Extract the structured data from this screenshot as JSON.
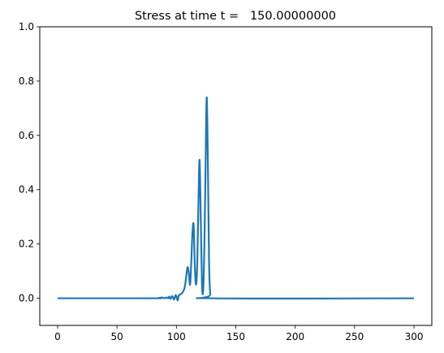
{
  "chart_data": {
    "type": "line",
    "title": "Stress at time t =   150.00000000",
    "xlabel": "",
    "ylabel": "",
    "xlim": [
      -15,
      315
    ],
    "ylim": [
      -0.1,
      1.0
    ],
    "grid": false,
    "x_ticks": [
      0,
      50,
      100,
      150,
      200,
      250,
      300
    ],
    "x_tick_labels": [
      "0",
      "50",
      "100",
      "150",
      "200",
      "250",
      "300"
    ],
    "y_ticks": [
      0.0,
      0.2,
      0.4,
      0.6,
      0.8,
      1.0
    ],
    "y_tick_labels": [
      "0.0",
      "0.2",
      "0.4",
      "0.6",
      "0.8",
      "1.0"
    ],
    "series": [
      {
        "color": "#1f77b4",
        "x": [
          0,
          80,
          85,
          88,
          90,
          91.5,
          93,
          94,
          95,
          96.5,
          98,
          99.5,
          101,
          102,
          103.5,
          105,
          107,
          108.5,
          109.5,
          110.5,
          111.5,
          112.5,
          113.5,
          114.5,
          115.5,
          116.5,
          117.5,
          118.5,
          119.5,
          120.5,
          121.5,
          122.5,
          123.5,
          124.5,
          125.5,
          126.5,
          127.5,
          128.5,
          130,
          300
        ],
        "y": [
          0,
          0,
          0.001,
          0.003,
          0.0,
          0.003,
          0.0,
          0.006,
          -0.002,
          0.008,
          -0.005,
          0.012,
          -0.008,
          0.01,
          0.015,
          0.02,
          0.04,
          0.09,
          0.115,
          0.09,
          0.05,
          0.13,
          0.24,
          0.27,
          0.12,
          0.05,
          0.12,
          0.34,
          0.51,
          0.3,
          0.06,
          0.025,
          0.18,
          0.47,
          0.74,
          0.5,
          0.13,
          0.015,
          0,
          0
        ]
      }
    ]
  }
}
